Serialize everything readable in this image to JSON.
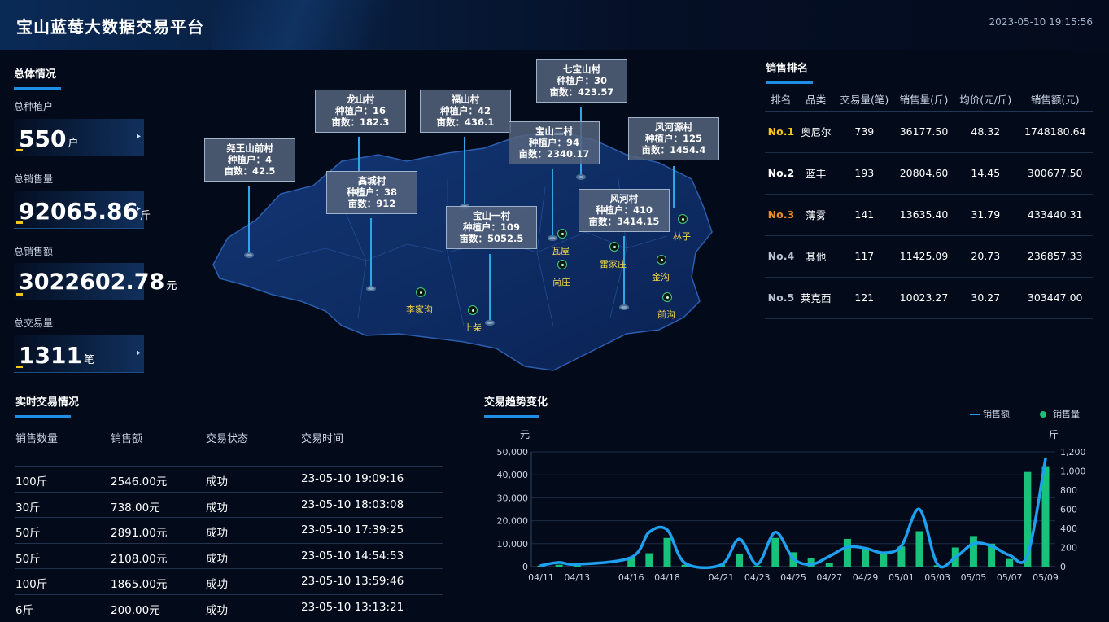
{
  "header": {
    "title": "宝山蓝莓大数据交易平台",
    "datetime": "2023-05-10 19:15:56"
  },
  "overview": {
    "title": "总体情况",
    "stats": [
      {
        "label": "总种植户",
        "value": "550",
        "unit": "户"
      },
      {
        "label": "总销售量",
        "value": "92065.86",
        "unit": "斤"
      },
      {
        "label": "总销售额",
        "value": "3022602.78",
        "unit": "元"
      },
      {
        "label": "总交易量",
        "value": "1311",
        "unit": "笔"
      }
    ]
  },
  "map": {
    "callouts": [
      {
        "name": "尧王山前村",
        "l1": "种植户：4",
        "l2": "亩数：42.5"
      },
      {
        "name": "龙山村",
        "l1": "种植户：16",
        "l2": "亩数：182.3"
      },
      {
        "name": "高城村",
        "l1": "种植户：38",
        "l2": "亩数：912"
      },
      {
        "name": "福山村",
        "l1": "种植户：42",
        "l2": "亩数：436.1"
      },
      {
        "name": "七宝山村",
        "l1": "种植户：30",
        "l2": "亩数：423.57"
      },
      {
        "name": "宝山二村",
        "l1": "种植户：94",
        "l2": "亩数：2340.17"
      },
      {
        "name": "风河源村",
        "l1": "种植户：125",
        "l2": "亩数：1454.4"
      },
      {
        "name": "宝山一村",
        "l1": "种植户：109",
        "l2": "亩数：5052.5"
      },
      {
        "name": "风河村",
        "l1": "种植户：410",
        "l2": "亩数：3414.15"
      }
    ],
    "villages": [
      "林子",
      "瓦屋",
      "雷家庄",
      "尚庄",
      "金沟",
      "李家沟",
      "前沟",
      "上柴"
    ]
  },
  "ranking": {
    "title": "销售排名",
    "headers": [
      "排名",
      "品类",
      "交易量(笔)",
      "销售量(斤)",
      "均价(元/斤)",
      "销售额(元)"
    ],
    "rows": [
      [
        "No.1",
        "奥尼尔",
        "739",
        "36177.50",
        "48.32",
        "1748180.64"
      ],
      [
        "No.2",
        "蓝丰",
        "193",
        "20804.60",
        "14.45",
        "300677.50"
      ],
      [
        "No.3",
        "薄雾",
        "141",
        "13635.40",
        "31.79",
        "433440.31"
      ],
      [
        "No.4",
        "其他",
        "117",
        "11425.09",
        "20.73",
        "236857.33"
      ],
      [
        "No.5",
        "莱克西",
        "121",
        "10023.27",
        "30.27",
        "303447.00"
      ]
    ]
  },
  "realtime": {
    "title": "实时交易情况",
    "headers": [
      "销售数量",
      "销售额",
      "交易状态",
      "交易时间"
    ],
    "rows": [
      [
        "100斤",
        "2546.00元",
        "成功",
        "23-05-10 19:09:16"
      ],
      [
        "30斤",
        "738.00元",
        "成功",
        "23-05-10 18:03:08"
      ],
      [
        "50斤",
        "2891.00元",
        "成功",
        "23-05-10 17:39:25"
      ],
      [
        "50斤",
        "2108.00元",
        "成功",
        "23-05-10 14:54:53"
      ],
      [
        "100斤",
        "1865.00元",
        "成功",
        "23-05-10 13:59:46"
      ],
      [
        "6斤",
        "200.00元",
        "成功",
        "23-05-10 13:13:21"
      ]
    ]
  },
  "chart_data": {
    "type": "bar",
    "title": "交易趋势变化",
    "y_left_label": "元",
    "y_right_label": "斤",
    "y_left_ticks": [
      "0",
      "10,000",
      "20,000",
      "30,000",
      "40,000",
      "50,000"
    ],
    "y_right_ticks": [
      "0",
      "200",
      "400",
      "600",
      "800",
      "1,000",
      "1,200"
    ],
    "ylim_left": [
      0,
      50000
    ],
    "ylim_right": [
      0,
      1200
    ],
    "x_tick_labels": [
      "04/11",
      "04/13",
      "04/16",
      "04/18",
      "04/21",
      "04/23",
      "04/25",
      "04/27",
      "04/29",
      "05/01",
      "05/03",
      "05/05",
      "05/07",
      "05/09"
    ],
    "legend_position": "top-right",
    "categories": [
      "04/11",
      "04/12",
      "04/13",
      "04/16",
      "04/17",
      "04/18",
      "04/19",
      "04/21",
      "04/22",
      "04/23",
      "04/24",
      "04/25",
      "04/26",
      "04/27",
      "04/28",
      "04/29",
      "04/30",
      "05/01",
      "05/02",
      "05/03",
      "05/04",
      "05/05",
      "05/06",
      "05/07",
      "05/08",
      "05/09"
    ],
    "series": [
      {
        "name": "销售额",
        "kind": "line",
        "axis": "left",
        "color": "#1ea0f0",
        "values": [
          500,
          1800,
          1000,
          4000,
          15000,
          16000,
          1500,
          800,
          12000,
          1000,
          15000,
          3500,
          1000,
          4500,
          8500,
          8000,
          6000,
          9000,
          25000,
          1000,
          4000,
          10000,
          9000,
          5000,
          5000,
          47000
        ]
      },
      {
        "name": "销售量",
        "kind": "bar",
        "axis": "right",
        "color": "#17c27a",
        "values": [
          10,
          20,
          12,
          100,
          140,
          300,
          20,
          25,
          130,
          10,
          300,
          150,
          90,
          40,
          290,
          200,
          130,
          210,
          370,
          15,
          200,
          320,
          240,
          80,
          990,
          1050
        ]
      }
    ]
  }
}
